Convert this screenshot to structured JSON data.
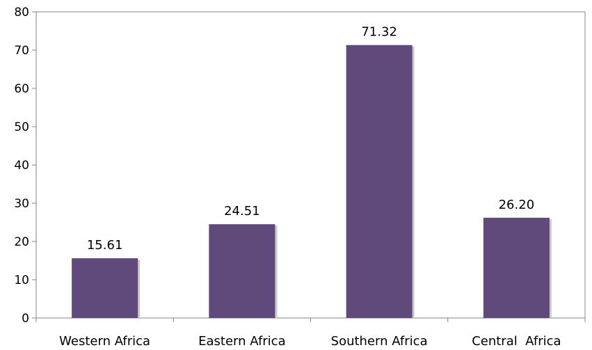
{
  "chart_data": {
    "type": "bar",
    "title": "",
    "xlabel": "",
    "ylabel": "",
    "categories": [
      "Western Africa",
      "Eastern Africa",
      "Southern Africa",
      "Central  Africa"
    ],
    "values": [
      15.61,
      24.51,
      71.32,
      26.2
    ],
    "data_labels": [
      "15.61",
      "24.51",
      "71.32",
      "26.20"
    ],
    "ylim": [
      0,
      80
    ],
    "yticks": [
      0,
      10,
      20,
      30,
      40,
      50,
      60,
      70,
      80
    ],
    "grid": false,
    "legend": "none",
    "colors": {
      "bar": "#5f4a7b",
      "bar_shadow": "#c9c9c9",
      "axis": "#868686"
    }
  }
}
